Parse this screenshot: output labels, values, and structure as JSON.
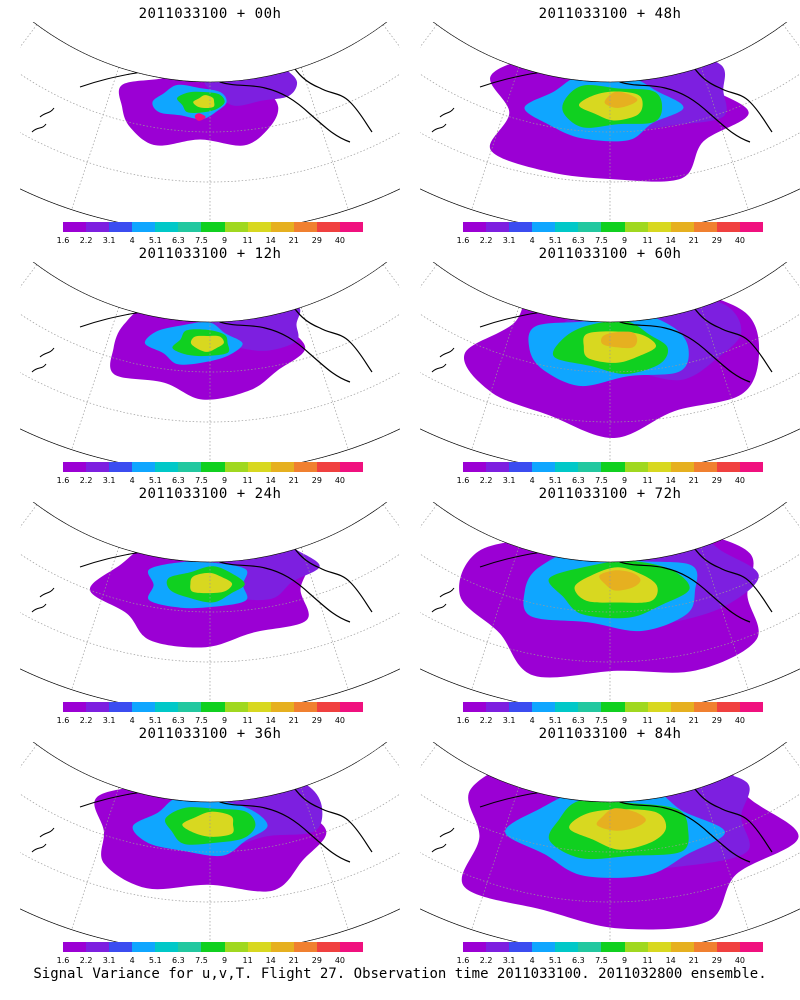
{
  "panels": [
    {
      "title": "2011033100 + 00h",
      "spread": 0.0
    },
    {
      "title": "2011033100 + 48h",
      "spread": 0.57
    },
    {
      "title": "2011033100 + 12h",
      "spread": 0.14
    },
    {
      "title": "2011033100 + 60h",
      "spread": 0.71
    },
    {
      "title": "2011033100 + 24h",
      "spread": 0.29
    },
    {
      "title": "2011033100 + 72h",
      "spread": 0.86
    },
    {
      "title": "2011033100 + 36h",
      "spread": 0.43
    },
    {
      "title": "2011033100 + 84h",
      "spread": 1.0
    }
  ],
  "colorbar": {
    "colors": [
      "#9b00d4",
      "#7d1fe0",
      "#3b4cf0",
      "#0fa6ff",
      "#00c8c8",
      "#22c8a0",
      "#10d020",
      "#a0d820",
      "#d8d820",
      "#e6b020",
      "#f08030",
      "#f04040",
      "#f0107e"
    ],
    "labels": [
      "1.6",
      "2.2",
      "3.1",
      "4",
      "5.1",
      "6.3",
      "7.5",
      "9",
      "11",
      "14",
      "21",
      "29",
      "40"
    ]
  },
  "caption": "Signal Variance for u,v,T. Flight 27. Observation time 2011033100. 2011032800 ensemble."
}
